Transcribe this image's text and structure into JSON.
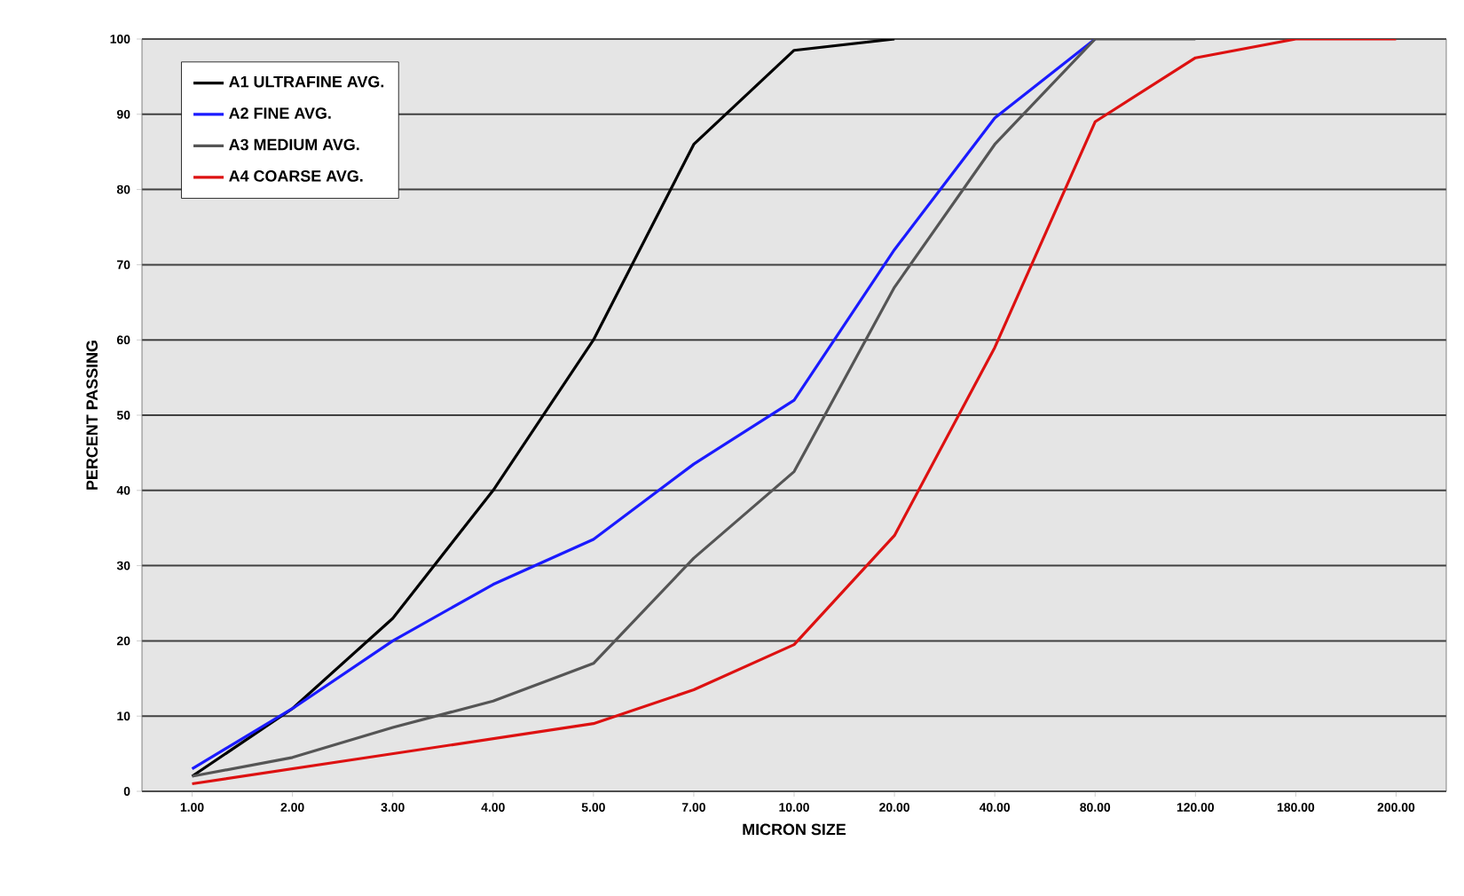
{
  "chart_data": {
    "type": "line",
    "xlabel": "MICRON SIZE",
    "ylabel": "PERCENT PASSING",
    "categories": [
      "1.00",
      "2.00",
      "3.00",
      "4.00",
      "5.00",
      "7.00",
      "10.00",
      "20.00",
      "40.00",
      "80.00",
      "120.00",
      "180.00",
      "200.00"
    ],
    "series": [
      {
        "name": "A1 ULTRAFINE AVG.",
        "color": "#000000",
        "values": [
          2,
          11,
          23,
          40,
          60,
          86,
          98.5,
          100,
          null,
          null,
          null,
          null,
          null
        ]
      },
      {
        "name": "A2 FINE AVG.",
        "color": "#1a1aff",
        "values": [
          3,
          11,
          20,
          27.5,
          33.5,
          43.5,
          52,
          72,
          89.5,
          100,
          null,
          null,
          null
        ]
      },
      {
        "name": "A3 MEDIUM AVG.",
        "color": "#555555",
        "values": [
          2,
          4.5,
          8.5,
          12,
          17,
          31,
          42.5,
          67,
          86,
          100,
          100,
          null,
          null
        ]
      },
      {
        "name": "A4 COARSE AVG.",
        "color": "#dd1111",
        "values": [
          1,
          3,
          5,
          7,
          9,
          13.5,
          19.5,
          34,
          59,
          89,
          97.5,
          100,
          100
        ]
      }
    ],
    "ylim": [
      0,
      100
    ],
    "yticks": [
      0,
      10,
      20,
      30,
      40,
      50,
      60,
      70,
      80,
      90,
      100
    ],
    "grid": "y",
    "legend": "top left",
    "marker": "none",
    "line_style": "solid"
  }
}
